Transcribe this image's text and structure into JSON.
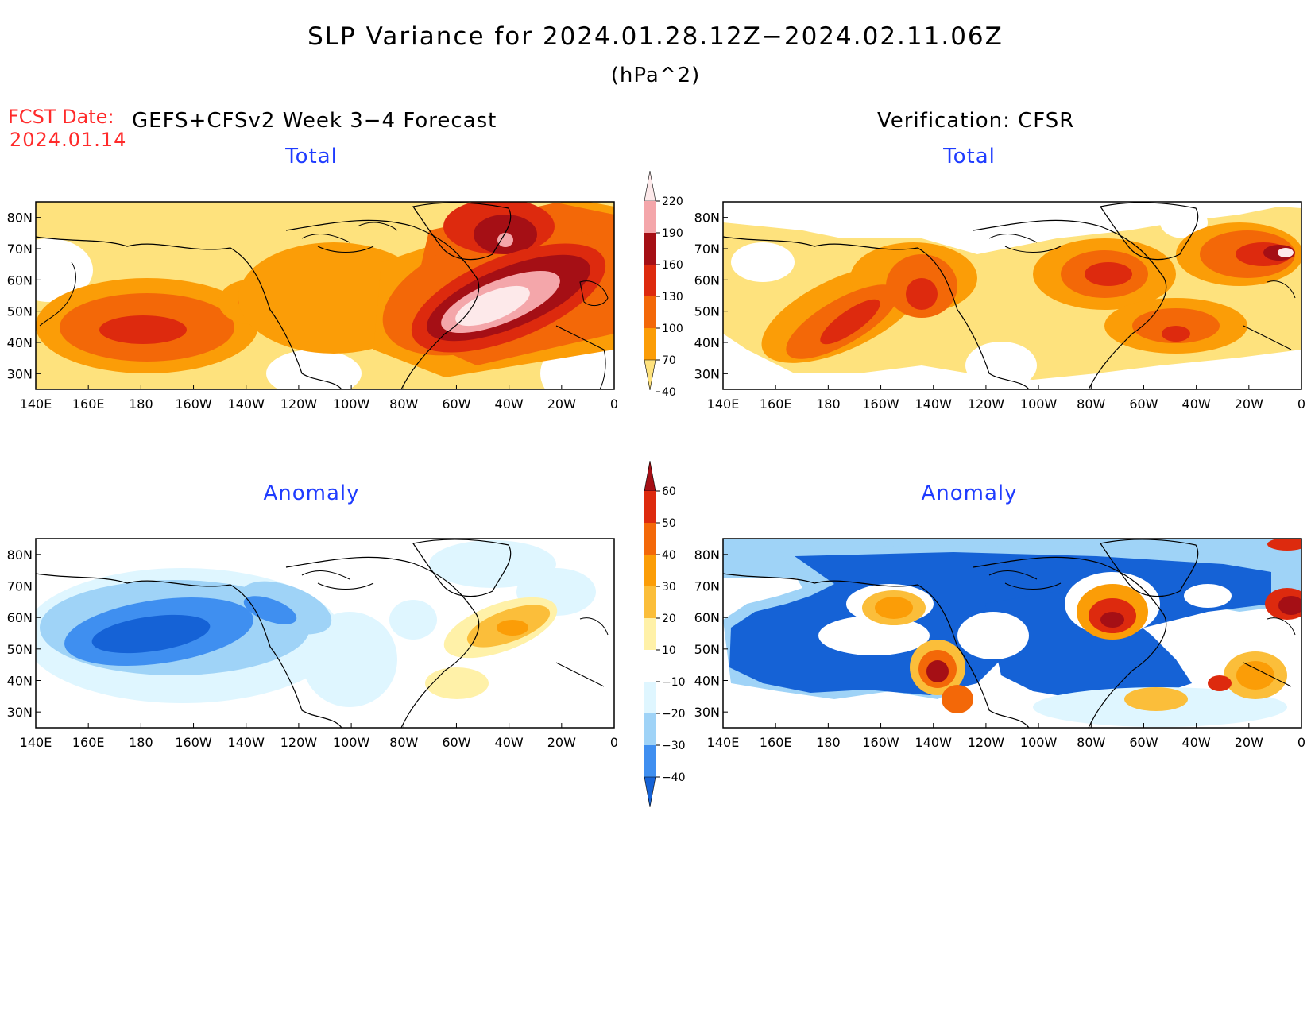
{
  "title": "SLP Variance for 2024.01.28.12Z−2024.02.11.06Z",
  "units": "(hPa^2)",
  "fcst": {
    "label": "FCST Date:",
    "date": "2024.01.14"
  },
  "left_heading": "GEFS+CFSv2 Week 3−4 Forecast",
  "right_heading": "Verification: CFSR",
  "panels": {
    "top_left": {
      "title": "Total"
    },
    "top_right": {
      "title": "Total"
    },
    "bottom_left": {
      "title": "Anomaly"
    },
    "bottom_right": {
      "title": "Anomaly"
    }
  },
  "lat_labels": [
    "80N",
    "70N",
    "60N",
    "50N",
    "40N",
    "30N"
  ],
  "lon_labels": [
    "140E",
    "160E",
    "180",
    "160W",
    "140W",
    "120W",
    "100W",
    "80W",
    "60W",
    "40W",
    "20W",
    "0"
  ],
  "colorbar_total": {
    "levels": [
      "220",
      "190",
      "160",
      "130",
      "100",
      "70",
      "40"
    ],
    "colors": [
      "#fde9ea",
      "#f4a6aa",
      "#a50f15",
      "#dd2a0e",
      "#f36808",
      "#fb9d07",
      "#fee27d"
    ]
  },
  "colorbar_anomaly": {
    "levels": [
      "60",
      "50",
      "40",
      "30",
      "20",
      "10",
      "−10",
      "−20",
      "−30",
      "−40"
    ],
    "colors": [
      "#a50f15",
      "#dd2a0e",
      "#f36808",
      "#fb9d07",
      "#fbbe3a",
      "#fff1a8",
      "#ffffff",
      "#dff6ff",
      "#9fd3f7",
      "#3f8ff0",
      "#1562d6"
    ]
  },
  "colors": {
    "title_blue": "#1f3cff",
    "fcst_red": "#ff2a2a"
  }
}
